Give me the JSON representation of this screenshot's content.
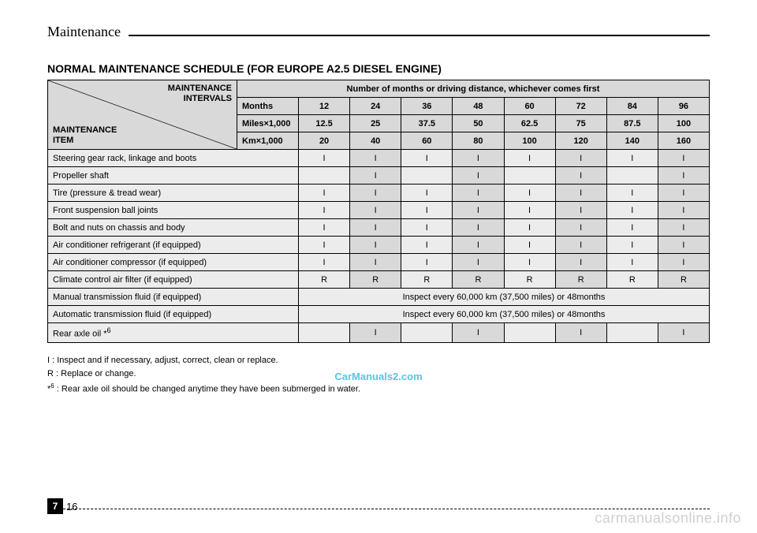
{
  "header": {
    "title": "Maintenance"
  },
  "section_title": "NORMAL MAINTENANCE SCHEDULE (FOR EUROPE A2.5 DIESEL ENGINE)",
  "table": {
    "corner_top": "MAINTENANCE\nINTERVALS",
    "corner_bottom": "MAINTENANCE\nITEM",
    "span_header": "Number of months or driving distance, whichever comes first",
    "row_headers": [
      "Months",
      "Miles×1,000",
      "Km×1,000"
    ],
    "columns": {
      "months": [
        "12",
        "24",
        "36",
        "48",
        "60",
        "72",
        "84",
        "96"
      ],
      "miles": [
        "12.5",
        "25",
        "37.5",
        "50",
        "62.5",
        "75",
        "87.5",
        "100"
      ],
      "km": [
        "20",
        "40",
        "60",
        "80",
        "100",
        "120",
        "140",
        "160"
      ]
    },
    "rows": [
      {
        "label": "Steering gear rack, linkage and boots",
        "cells": [
          "I",
          "I",
          "I",
          "I",
          "I",
          "I",
          "I",
          "I"
        ]
      },
      {
        "label": "Propeller shaft",
        "cells": [
          "",
          "I",
          "",
          "I",
          "",
          "I",
          "",
          "I"
        ]
      },
      {
        "label": "Tire (pressure & tread wear)",
        "cells": [
          "I",
          "I",
          "I",
          "I",
          "I",
          "I",
          "I",
          "I"
        ]
      },
      {
        "label": "Front suspension ball joints",
        "cells": [
          "I",
          "I",
          "I",
          "I",
          "I",
          "I",
          "I",
          "I"
        ]
      },
      {
        "label": "Bolt and nuts on chassis and body",
        "cells": [
          "I",
          "I",
          "I",
          "I",
          "I",
          "I",
          "I",
          "I"
        ]
      },
      {
        "label": "Air conditioner refrigerant (if equipped)",
        "cells": [
          "I",
          "I",
          "I",
          "I",
          "I",
          "I",
          "I",
          "I"
        ]
      },
      {
        "label": "Air conditioner compressor (if equipped)",
        "cells": [
          "I",
          "I",
          "I",
          "I",
          "I",
          "I",
          "I",
          "I"
        ]
      },
      {
        "label": "Climate control air filter (if equipped)",
        "cells": [
          "R",
          "R",
          "R",
          "R",
          "R",
          "R",
          "R",
          "R"
        ]
      },
      {
        "label": "Manual transmission fluid (if equipped)",
        "span": "Inspect every 60,000 km (37,500 miles) or 48months"
      },
      {
        "label": "Automatic transmission fluid (if equipped)",
        "span": "Inspect every 60,000 km (37,500 miles) or 48months"
      },
      {
        "label": "Rear axle oil *",
        "sup": "6",
        "cells": [
          "",
          "I",
          "",
          "I",
          "",
          "I",
          "",
          "I"
        ]
      }
    ],
    "colors": {
      "header_bg": "#d9d9d9",
      "light_bg": "#ececec",
      "border": "#000000"
    }
  },
  "legend": {
    "line1_prefix": "I",
    "line1": " : Inspect and if necessary, adjust, correct, clean or replace.",
    "line2_prefix": "R",
    "line2": " : Replace or change.",
    "line3_prefix": "*",
    "line3_sup": "6",
    "line3": " : Rear axle oil should be changed anytime they have been submerged in water."
  },
  "watermarks": {
    "center": "CarManuals2.com",
    "bottom": "carmanualsonline.info"
  },
  "footer": {
    "chapter": "7",
    "page": "16"
  }
}
